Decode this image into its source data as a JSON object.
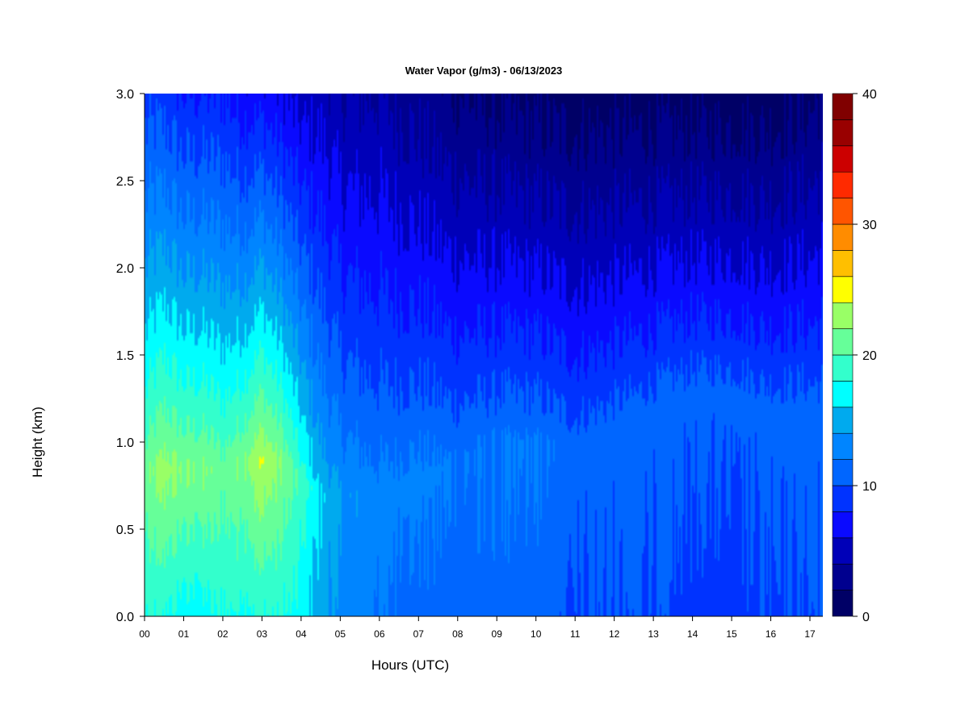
{
  "chart_data": {
    "type": "heatmap",
    "title": "Water Vapor (g/m3) - 06/13/2023",
    "xlabel": "Hours (UTC)",
    "ylabel": "Height (km)",
    "x_ticks": [
      "00",
      "01",
      "02",
      "03",
      "04",
      "05",
      "06",
      "07",
      "08",
      "09",
      "10",
      "11",
      "12",
      "13",
      "14",
      "15",
      "16",
      "17"
    ],
    "y_ticks": [
      "0.0",
      "0.5",
      "1.0",
      "1.5",
      "2.0",
      "2.5",
      "3.0"
    ],
    "xlim": [
      0,
      17.33
    ],
    "ylim": [
      0,
      3.0
    ],
    "colorbar": {
      "ticks": [
        "0",
        "10",
        "20",
        "30",
        "40"
      ],
      "range": [
        0,
        40
      ],
      "levels": 20,
      "colors": [
        "#000066",
        "#00008f",
        "#0000b8",
        "#0000e0",
        "#0a0aff",
        "#0033ff",
        "#0066ff",
        "#0085ff",
        "#00aaee",
        "#00c8f0",
        "#00ffff",
        "#33ffcc",
        "#66ff99",
        "#99ff66",
        "#ccff33",
        "#ffff00",
        "#ffbf00",
        "#ff8c00",
        "#ff5500",
        "#ff2a00",
        "#ff0000",
        "#cc0000",
        "#990000",
        "#800000"
      ]
    },
    "time_series": {
      "hours": [
        0,
        0.5,
        1,
        1.5,
        2,
        2.5,
        3,
        3.5,
        4,
        4.5,
        5,
        6,
        7,
        8,
        9,
        10,
        11,
        12,
        13,
        14,
        15,
        16,
        17,
        17.33
      ],
      "near_surface_gm3": [
        18,
        18,
        17,
        17,
        18,
        18,
        18,
        18,
        17,
        15,
        13,
        12,
        11,
        11,
        11,
        11,
        10,
        10,
        10,
        9,
        9,
        10,
        10,
        10
      ],
      "peak_gm3": [
        21,
        23,
        22,
        22,
        21,
        22,
        24,
        22,
        19,
        16,
        14,
        13,
        13,
        12,
        12,
        12,
        11,
        11,
        11,
        11,
        11,
        11,
        11,
        11
      ],
      "peak_height_km": [
        0.85,
        0.85,
        0.85,
        0.85,
        0.85,
        0.9,
        0.9,
        0.9,
        0.8,
        0.7,
        0.7,
        0.7,
        0.8,
        0.9,
        1.0,
        1.0,
        1.0,
        1.1,
        1.2,
        1.3,
        1.3,
        1.2,
        1.2,
        1.2
      ],
      "top_3km_gm3": [
        9,
        9,
        8,
        8,
        8,
        7,
        7,
        6,
        5,
        5,
        4,
        4,
        3,
        2,
        1.5,
        1.2,
        1,
        1,
        1,
        1,
        1,
        1,
        1.5,
        2
      ]
    }
  }
}
